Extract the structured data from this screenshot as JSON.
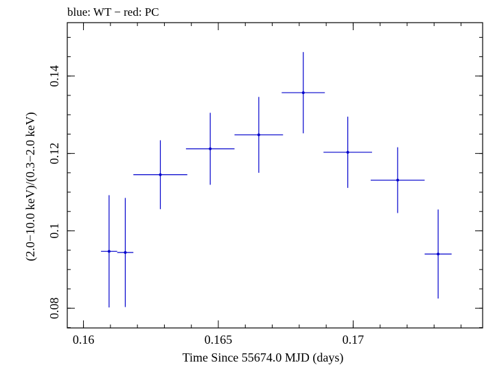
{
  "chart_data": {
    "type": "scatter",
    "title": "blue: WT − red: PC",
    "xlabel": "Time Since 55674.0 MJD (days)",
    "ylabel": "(2.0−10.0 keV)/(0.3−2.0 keV)",
    "xlim": [
      0.1594,
      0.1748
    ],
    "ylim": [
      0.0749,
      0.1538
    ],
    "x_ticks": [
      {
        "value": 0.16,
        "label": "0.16"
      },
      {
        "value": 0.165,
        "label": "0.165"
      },
      {
        "value": 0.17,
        "label": "0.17"
      }
    ],
    "y_ticks": [
      {
        "value": 0.08,
        "label": "0.08"
      },
      {
        "value": 0.1,
        "label": "0.1"
      },
      {
        "value": 0.12,
        "label": "0.12"
      },
      {
        "value": 0.14,
        "label": "0.14"
      }
    ],
    "x_minor_step": 0.001,
    "y_minor_step": 0.005,
    "grid": false,
    "series": [
      {
        "color": "#0000cc",
        "points": [
          {
            "x": 0.16095,
            "y": 0.0947,
            "xerr_lo": 0.0003,
            "xerr_hi": 0.0003,
            "yerr_lo": 0.0145,
            "yerr_hi": 0.0145
          },
          {
            "x": 0.16155,
            "y": 0.0944,
            "xerr_lo": 0.0003,
            "xerr_hi": 0.0003,
            "yerr_lo": 0.0141,
            "yerr_hi": 0.0141
          },
          {
            "x": 0.16285,
            "y": 0.1145,
            "xerr_lo": 0.001,
            "xerr_hi": 0.001,
            "yerr_lo": 0.0089,
            "yerr_hi": 0.0089
          },
          {
            "x": 0.1647,
            "y": 0.1212,
            "xerr_lo": 0.0009,
            "xerr_hi": 0.0009,
            "yerr_lo": 0.0093,
            "yerr_hi": 0.0093
          },
          {
            "x": 0.1665,
            "y": 0.1248,
            "xerr_lo": 0.0009,
            "xerr_hi": 0.0009,
            "yerr_lo": 0.0098,
            "yerr_hi": 0.0098
          },
          {
            "x": 0.16815,
            "y": 0.1357,
            "xerr_lo": 0.0008,
            "xerr_hi": 0.0008,
            "yerr_lo": 0.0105,
            "yerr_hi": 0.0105
          },
          {
            "x": 0.1698,
            "y": 0.1203,
            "xerr_lo": 0.0009,
            "xerr_hi": 0.0009,
            "yerr_lo": 0.0092,
            "yerr_hi": 0.0092
          },
          {
            "x": 0.17165,
            "y": 0.1131,
            "xerr_lo": 0.001,
            "xerr_hi": 0.001,
            "yerr_lo": 0.0085,
            "yerr_hi": 0.0085
          },
          {
            "x": 0.17315,
            "y": 0.094,
            "xerr_lo": 0.0005,
            "xerr_hi": 0.0005,
            "yerr_lo": 0.0115,
            "yerr_hi": 0.0115
          }
        ]
      }
    ]
  }
}
